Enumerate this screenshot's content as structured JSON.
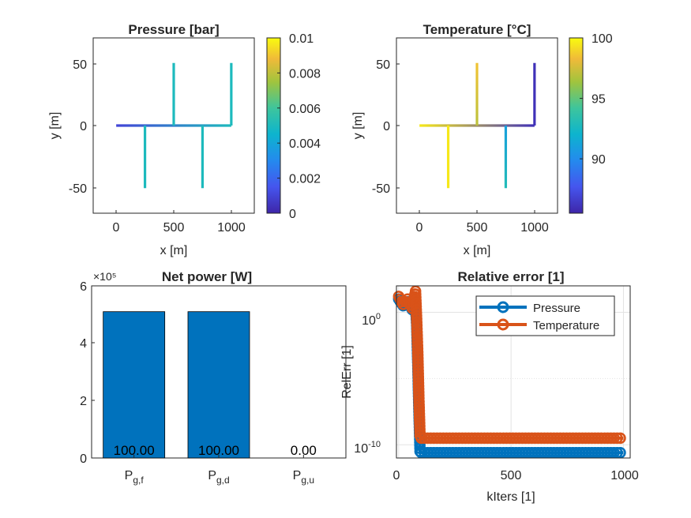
{
  "chart_data": [
    {
      "type": "heatmap",
      "title": "Pressure [bar]",
      "xlabel": "x [m]",
      "ylabel": "y [m]",
      "xlim": [
        -200,
        1200
      ],
      "ylim": [
        -70,
        70
      ],
      "xticks": [
        "0",
        "500",
        "1000"
      ],
      "yticks": [
        "50",
        "0",
        "-50"
      ],
      "colorbar": {
        "min": 0,
        "max": 0.01,
        "ticks": [
          "0",
          "0.002",
          "0.004",
          "0.006",
          "0.008",
          "0.01"
        ]
      },
      "pipes": [
        {
          "x": [
            0,
            1000
          ],
          "y": [
            0,
            0
          ],
          "values": [
            0.001,
            0.005
          ]
        },
        {
          "x": [
            500,
            500
          ],
          "y": [
            0,
            50
          ],
          "values": [
            0.005,
            0.005
          ]
        },
        {
          "x": [
            1000,
            1000
          ],
          "y": [
            0,
            50
          ],
          "values": [
            0.005,
            0.005
          ]
        },
        {
          "x": [
            250,
            250
          ],
          "y": [
            0,
            -50
          ],
          "values": [
            0.005,
            0.005
          ]
        },
        {
          "x": [
            750,
            750
          ],
          "y": [
            0,
            -50
          ],
          "values": [
            0.005,
            0.005
          ]
        }
      ]
    },
    {
      "type": "heatmap",
      "title": "Temperature [°C]",
      "xlabel": "x [m]",
      "ylabel": "y [m]",
      "xlim": [
        -200,
        1200
      ],
      "ylim": [
        -70,
        70
      ],
      "xticks": [
        "0",
        "500",
        "1000"
      ],
      "yticks": [
        "50",
        "0",
        "-50"
      ],
      "colorbar": {
        "min": 85.5,
        "max": 100,
        "ticks": [
          "90",
          "95",
          "100"
        ]
      },
      "pipes": [
        {
          "x": [
            0,
            1000
          ],
          "y": [
            0,
            0
          ],
          "values": [
            99.5,
            86
          ]
        },
        {
          "x": [
            500,
            500
          ],
          "y": [
            0,
            50
          ],
          "values": [
            97,
            98.5
          ]
        },
        {
          "x": [
            1000,
            1000
          ],
          "y": [
            0,
            50
          ],
          "values": [
            86,
            86
          ]
        },
        {
          "x": [
            250,
            250
          ],
          "y": [
            0,
            -50
          ],
          "values": [
            99.5,
            99.5
          ]
        },
        {
          "x": [
            750,
            750
          ],
          "y": [
            0,
            -50
          ],
          "values": [
            91,
            93
          ]
        }
      ]
    },
    {
      "type": "bar",
      "title": "Net power [W]",
      "exponent_label": "×10⁵",
      "categories": [
        "P",
        "P",
        "P"
      ],
      "category_subscripts": [
        "g,f",
        "g,d",
        "g,u"
      ],
      "values": [
        5.1,
        5.1,
        0
      ],
      "data_labels": [
        "100.00",
        "100.00",
        "0.00"
      ],
      "ylim": [
        0,
        6
      ],
      "yticks": [
        "0",
        "2",
        "4",
        "6"
      ],
      "color": "#0072BD"
    },
    {
      "type": "line",
      "title": "Relative error [1]",
      "xlabel": "kIters [1]",
      "ylabel": "RelErr [1]",
      "xlim": [
        -10,
        1030
      ],
      "ylim_log10": [
        -11,
        2
      ],
      "xticks": [
        "0",
        "500",
        "1000"
      ],
      "yticks": [
        {
          "base": "10",
          "exp": "0"
        },
        {
          "base": "10",
          "exp": "-10"
        }
      ],
      "grid": true,
      "legend_position": "top-right",
      "series": [
        {
          "name": "Pressure",
          "color": "#0072BD",
          "x": [
            0,
            20,
            40,
            60,
            75,
            80,
            85,
            90,
            95,
            100,
            1000
          ],
          "log10_y": [
            1.0,
            0.5,
            0.8,
            0.2,
            0.5,
            -1.0,
            -4.0,
            -7.5,
            -10.5,
            -10.6,
            -10.6
          ]
        },
        {
          "name": "Temperature",
          "color": "#D95319",
          "x": [
            0,
            20,
            40,
            60,
            75,
            80,
            85,
            90,
            95,
            100,
            1000
          ],
          "log10_y": [
            1.2,
            0.6,
            1.0,
            0.3,
            1.6,
            -0.5,
            -3.0,
            -6.5,
            -9.3,
            -9.5,
            -9.5
          ]
        }
      ]
    }
  ]
}
